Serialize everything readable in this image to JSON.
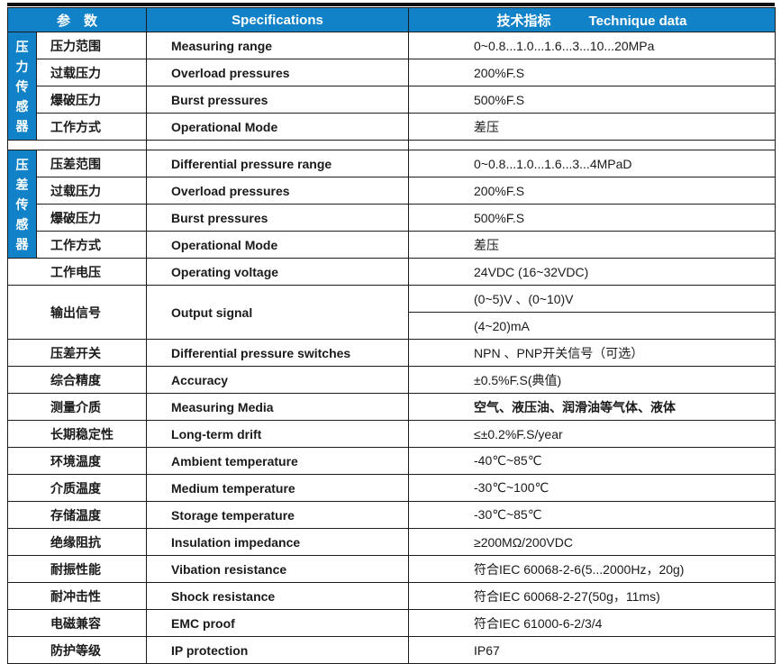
{
  "header": {
    "params": "参　数",
    "spec": "Specifications",
    "tech_cn": "技术指标",
    "tech_en": "Technique data"
  },
  "colors": {
    "header_blue": "#1182c8",
    "border_dark": "#1c1c1c",
    "top_bar": "#0e0e12"
  },
  "sidebar": {
    "pressure_sensor": "压力传感器",
    "diff_pressure_sensor": "压差传感器"
  },
  "rows": [
    {
      "cn": "压力范围",
      "en": "Measuring range",
      "val": "0~0.8...1.0...1.6...3...10...20MPa"
    },
    {
      "cn": "过载压力",
      "en": "Overload pressures",
      "val": "200%F.S"
    },
    {
      "cn": "爆破压力",
      "en": "Burst pressures",
      "val": "500%F.S"
    },
    {
      "cn": "工作方式",
      "en": "Operational Mode",
      "val": "差压"
    },
    {
      "cn": "压差范围",
      "en": "Differential pressure range",
      "val": "0~0.8...1.0...1.6...3...4MPaD"
    },
    {
      "cn": "过载压力",
      "en": "Overload pressures",
      "val": "200%F.S"
    },
    {
      "cn": "爆破压力",
      "en": "Burst pressures",
      "val": "500%F.S"
    },
    {
      "cn": "工作方式",
      "en": "Operational Mode",
      "val": "差压"
    },
    {
      "cn": "工作电压",
      "en": "Operating voltage",
      "val": "24VDC (16~32VDC)"
    },
    {
      "cn": "输出信号",
      "en": "Output signal",
      "val1": "(0~5)V 、(0~10)V",
      "val2": "(4~20)mA"
    },
    {
      "cn": "压差开关",
      "en": "Differential pressure switches",
      "val": "NPN 、PNP开关信号（可选）"
    },
    {
      "cn": "综合精度",
      "en": "Accuracy",
      "val": "±0.5%F.S(典值)"
    },
    {
      "cn": "测量介质",
      "en": "Measuring Media",
      "val": "空气、液压油、润滑油等气体、液体"
    },
    {
      "cn": "长期稳定性",
      "en": "Long-term drift",
      "val": "≤±0.2%F.S/year"
    },
    {
      "cn": "环境温度",
      "en": "Ambient temperature",
      "val": "-40℃~85℃"
    },
    {
      "cn": "介质温度",
      "en": "Medium temperature",
      "val": "-30℃~100℃"
    },
    {
      "cn": "存储温度",
      "en": "Storage temperature",
      "val": "-30℃~85℃"
    },
    {
      "cn": "绝缘阻抗",
      "en": "Insulation impedance",
      "val": "≥200MΩ/200VDC"
    },
    {
      "cn": "耐振性能",
      "en": "Vibation resistance",
      "val": "符合IEC 60068-2-6(5...2000Hz，20g)"
    },
    {
      "cn": "耐冲击性",
      "en": "Shock  resistance",
      "val": "符合IEC 60068-2-27(50g，11ms)"
    },
    {
      "cn": "电磁兼容",
      "en": "EMC proof",
      "val": "符合IEC 61000-6-2/3/4"
    },
    {
      "cn": "防护等级",
      "en": "IP protection",
      "val": "IP67"
    }
  ]
}
